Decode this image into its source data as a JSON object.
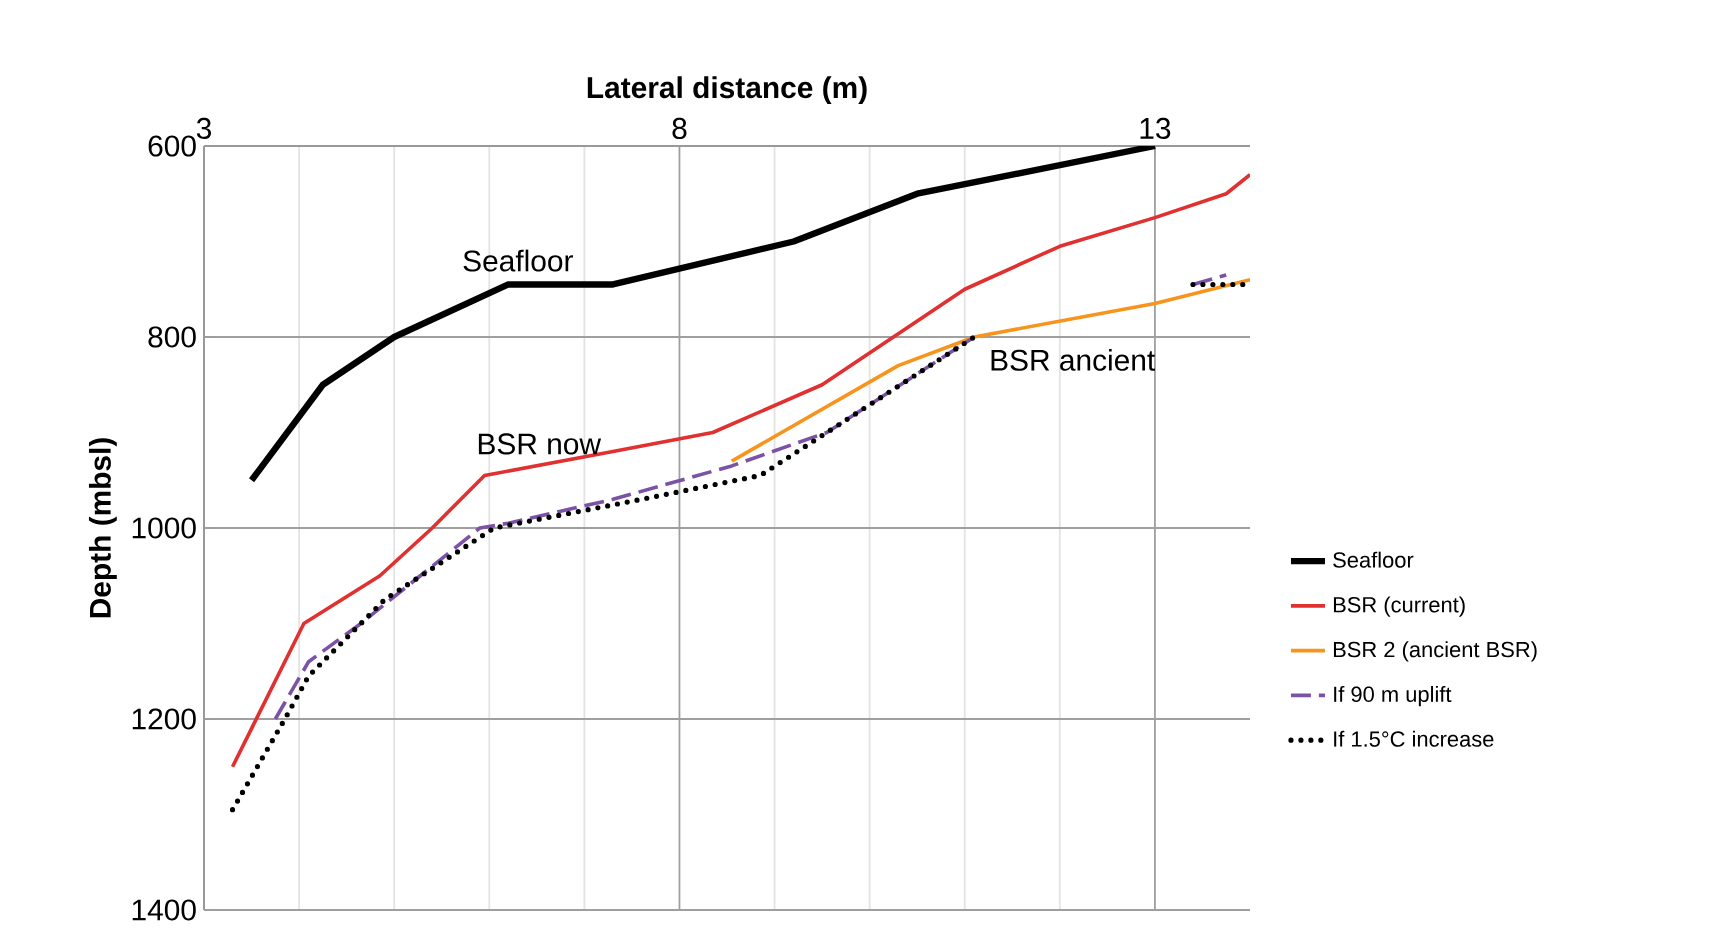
{
  "chart_data": {
    "type": "line",
    "xlabel": "Lateral distance (m)",
    "ylabel": "Depth (mbsl)",
    "xlim": [
      3,
      14
    ],
    "ylim": [
      1400,
      600
    ],
    "xticks": [
      3,
      8,
      13
    ],
    "yticks": [
      600,
      800,
      1000,
      1200,
      1400
    ],
    "grid": true,
    "legend": "right",
    "series": [
      {
        "name": "Seafloor",
        "color": "#000000",
        "line_style": "solid",
        "x": [
          3.5,
          4.25,
          5,
          6.2,
          7.3,
          9.2,
          10.5,
          13
        ],
        "values": [
          950,
          850,
          800,
          745,
          745,
          700,
          650,
          600
        ]
      },
      {
        "name": "BSR (current)",
        "color": "#e03030",
        "line_style": "solid",
        "x": [
          3.3,
          4.05,
          4.85,
          5.4,
          5.95,
          7.3,
          8.35,
          9.5,
          11,
          12,
          13,
          13.75,
          14
        ],
        "values": [
          1250,
          1100,
          1050,
          1000,
          945,
          920,
          900,
          850,
          750,
          705,
          675,
          650,
          630
        ]
      },
      {
        "name": "BSR 2 (ancient BSR)",
        "color": "#f7941d",
        "line_style": "solid",
        "x": [
          8.55,
          10.3,
          11.1,
          13,
          14
        ],
        "values": [
          930,
          830,
          800,
          765,
          740
        ]
      },
      {
        "name": "If 90 m uplift",
        "color": "#7b52a6",
        "line_style": "dashed",
        "x": [
          3.75,
          4.1,
          4.65,
          5.9,
          6.2,
          7.3,
          8.55,
          9.55,
          11.1,
          12.2,
          13.4,
          13.75
        ],
        "values": [
          1200,
          1140,
          1100,
          1000,
          995,
          970,
          935,
          900,
          800,
          null,
          745,
          735
        ]
      },
      {
        "name": "If 1.5°C increase",
        "color": "#000000",
        "line_style": "dotted",
        "x": [
          3.3,
          3.85,
          4.1,
          4.9,
          6.05,
          7.6,
          8.85,
          9.55,
          11.1,
          12.2,
          13.4,
          14
        ],
        "values": [
          1295,
          1200,
          1155,
          1075,
          1000,
          970,
          945,
          900,
          800,
          null,
          745,
          745
        ]
      }
    ],
    "annotations": [
      "Seafloor",
      "BSR now",
      "BSR ancient"
    ]
  }
}
